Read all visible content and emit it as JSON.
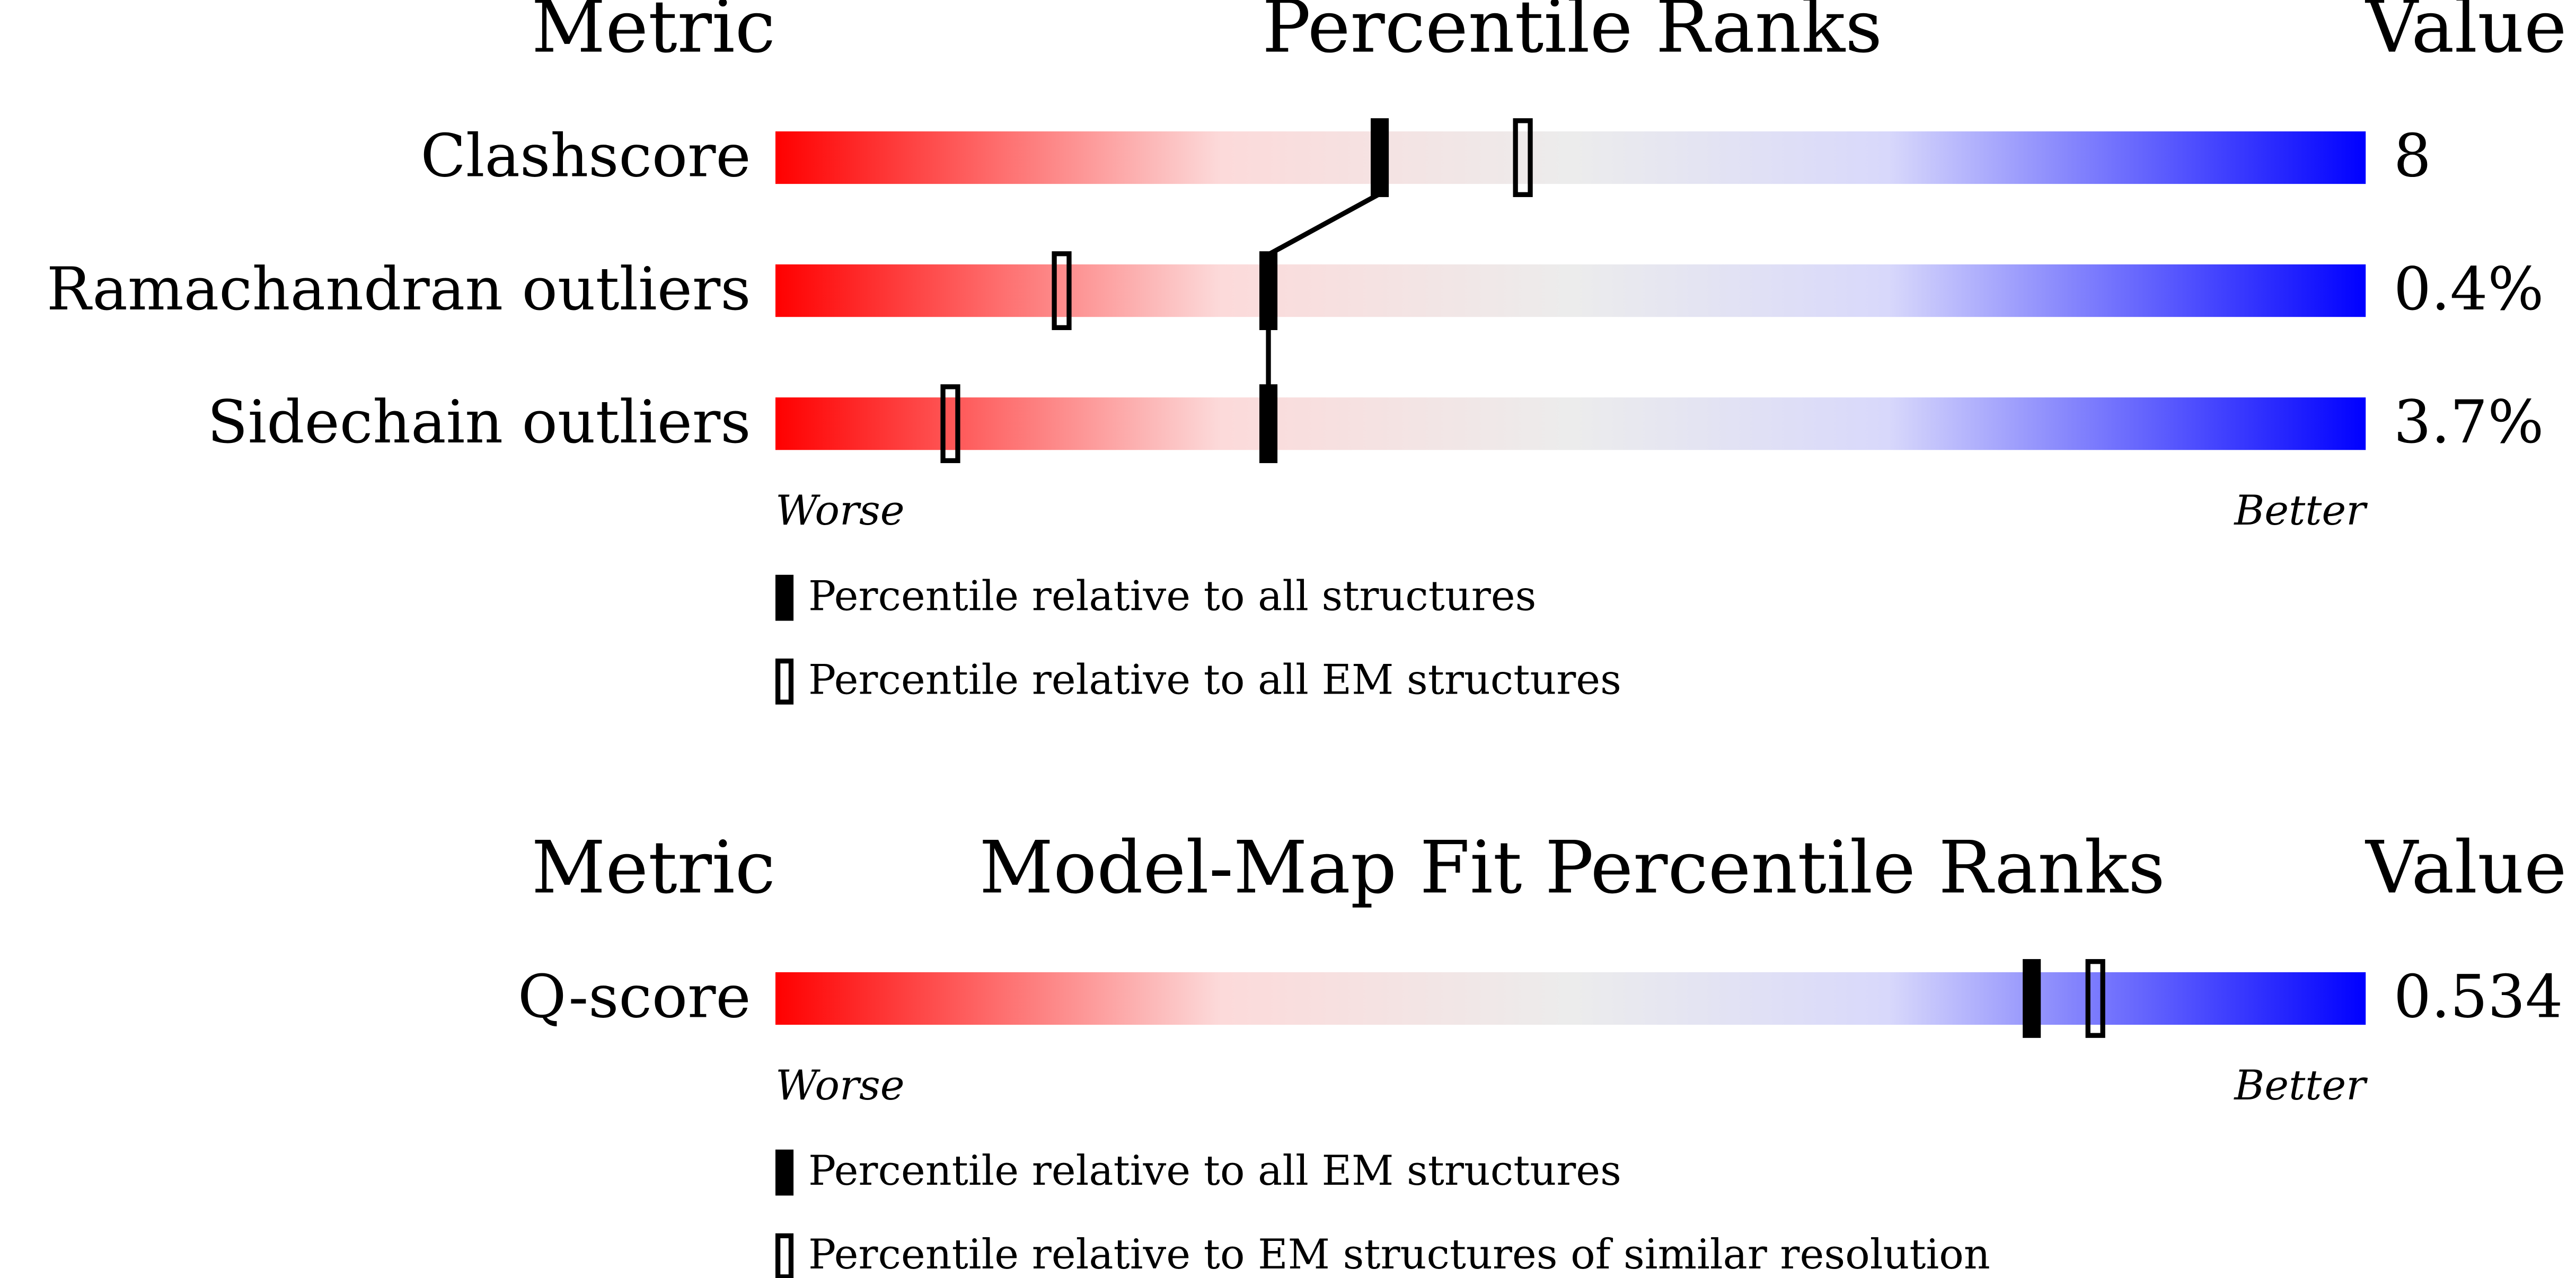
{
  "chart_data": [
    {
      "type": "percentile-slider",
      "metric_header": "Metric",
      "title": "Percentile Ranks",
      "value_header": "Value",
      "categories": [
        "Clashscore",
        "Ramachandran outliers",
        "Sidechain outliers"
      ],
      "metric_values": [
        "8",
        "0.4%",
        "3.7%"
      ],
      "xlim": [
        0,
        100
      ],
      "low_label": "Worse",
      "high_label": "Better",
      "series": [
        {
          "name": "Percentile relative to all structures",
          "style": "filled",
          "color": "#000000",
          "values": [
            38,
            31,
            31
          ]
        },
        {
          "name": "Percentile relative to all EM structures",
          "style": "open",
          "color": "#000000",
          "values": [
            47,
            18,
            11
          ]
        }
      ]
    },
    {
      "type": "percentile-slider",
      "metric_header": "Metric",
      "title": "Model-Map Fit Percentile Ranks",
      "value_header": "Value",
      "categories": [
        "Q-score"
      ],
      "metric_values": [
        "0.534"
      ],
      "xlim": [
        0,
        100
      ],
      "low_label": "Worse",
      "high_label": "Better",
      "series": [
        {
          "name": "Percentile relative to all EM structures",
          "style": "filled",
          "color": "#000000",
          "values": [
            79
          ]
        },
        {
          "name": "Percentile relative to EM structures of similar resolution",
          "style": "open",
          "color": "#000000",
          "values": [
            83
          ]
        }
      ]
    }
  ]
}
